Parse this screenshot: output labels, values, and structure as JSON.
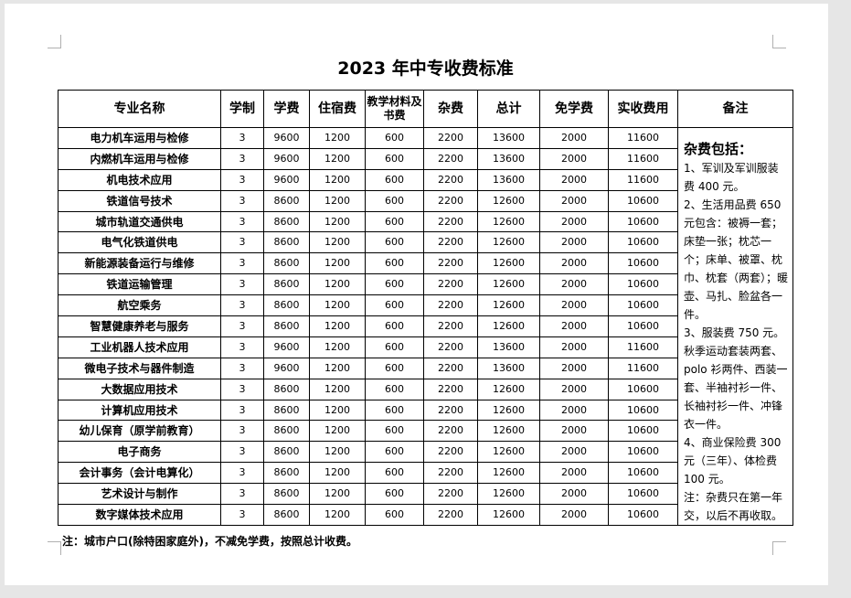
{
  "title": "2023 年中专收费标准",
  "headers": [
    "专业名称",
    "学制",
    "学费",
    "住宿费",
    "教学材料及书费",
    "杂费",
    "总计",
    "免学费",
    "实收费用",
    "备注"
  ],
  "rows": [
    [
      "电力机车运用与检修",
      "3",
      "9600",
      "1200",
      "600",
      "2200",
      "13600",
      "2000",
      "11600"
    ],
    [
      "内燃机车运用与检修",
      "3",
      "9600",
      "1200",
      "600",
      "2200",
      "13600",
      "2000",
      "11600"
    ],
    [
      "机电技术应用",
      "3",
      "9600",
      "1200",
      "600",
      "2200",
      "13600",
      "2000",
      "11600"
    ],
    [
      "铁道信号技术",
      "3",
      "8600",
      "1200",
      "600",
      "2200",
      "12600",
      "2000",
      "10600"
    ],
    [
      "城市轨道交通供电",
      "3",
      "8600",
      "1200",
      "600",
      "2200",
      "12600",
      "2000",
      "10600"
    ],
    [
      "电气化铁道供电",
      "3",
      "8600",
      "1200",
      "600",
      "2200",
      "12600",
      "2000",
      "10600"
    ],
    [
      "新能源装备运行与维修",
      "3",
      "8600",
      "1200",
      "600",
      "2200",
      "12600",
      "2000",
      "10600"
    ],
    [
      "铁道运输管理",
      "3",
      "8600",
      "1200",
      "600",
      "2200",
      "12600",
      "2000",
      "10600"
    ],
    [
      "航空乘务",
      "3",
      "8600",
      "1200",
      "600",
      "2200",
      "12600",
      "2000",
      "10600"
    ],
    [
      "智慧健康养老与服务",
      "3",
      "8600",
      "1200",
      "600",
      "2200",
      "12600",
      "2000",
      "10600"
    ],
    [
      "工业机器人技术应用",
      "3",
      "9600",
      "1200",
      "600",
      "2200",
      "13600",
      "2000",
      "11600"
    ],
    [
      "微电子技术与器件制造",
      "3",
      "9600",
      "1200",
      "600",
      "2200",
      "13600",
      "2000",
      "11600"
    ],
    [
      "大数据应用技术",
      "3",
      "8600",
      "1200",
      "600",
      "2200",
      "12600",
      "2000",
      "10600"
    ],
    [
      "计算机应用技术",
      "3",
      "8600",
      "1200",
      "600",
      "2200",
      "12600",
      "2000",
      "10600"
    ],
    [
      "幼儿保育（原学前教育）",
      "3",
      "8600",
      "1200",
      "600",
      "2200",
      "12600",
      "2000",
      "10600"
    ],
    [
      "电子商务",
      "3",
      "8600",
      "1200",
      "600",
      "2200",
      "12600",
      "2000",
      "10600"
    ],
    [
      "会计事务（会计电算化）",
      "3",
      "8600",
      "1200",
      "600",
      "2200",
      "12600",
      "2000",
      "10600"
    ],
    [
      "艺术设计与制作",
      "3",
      "8600",
      "1200",
      "600",
      "2200",
      "12600",
      "2000",
      "10600"
    ],
    [
      "数字媒体技术应用",
      "3",
      "8600",
      "1200",
      "600",
      "2200",
      "12600",
      "2000",
      "10600"
    ]
  ],
  "notes": {
    "heading": "杂费包括：",
    "lines": [
      "1、军训及军训服装费 400 元。",
      "2、生活用品费 650 元包含：被褥一套；床垫一张；枕芯一个；床单、被罩、枕巾、枕套（两套）；暖壶、马扎、脸盆各一件。",
      "3、服装费 750 元。秋季运动套装两套、polo 衫两件、西装一套、半袖衬衫一件、长袖衬衫一件、冲锋衣一件。",
      "4、商业保险费 300 元（三年）、体检费 100 元。",
      "注：杂费只在第一年交，以后不再收取。"
    ]
  },
  "footnote": "注：城市户口(除特困家庭外)，不减免学费，按照总计收费。"
}
